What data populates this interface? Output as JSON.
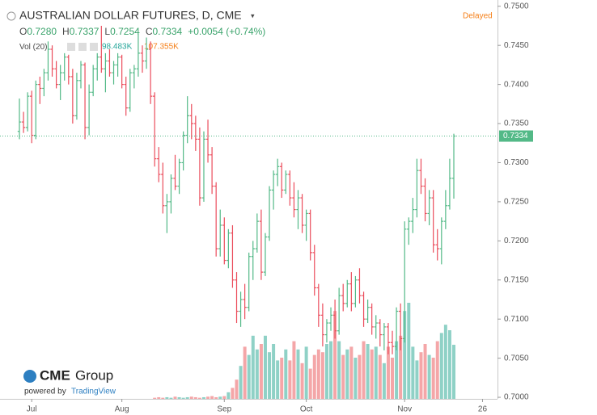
{
  "chart_data": {
    "type": "ohlc",
    "legend": {
      "title": "AUSTRALIAN DOLLAR FUTURES, D, CME",
      "status": "Delayed",
      "ohlc": [
        {
          "label": "O",
          "value": "0.7280"
        },
        {
          "label": "H",
          "value": "0.7337"
        },
        {
          "label": "L",
          "value": "0.7254"
        },
        {
          "label": "C",
          "value": "0.7334"
        }
      ],
      "change": "+0.0054 (+0.74%)",
      "volume_label": "Vol (20)",
      "volume_value": "98.483K",
      "volume_ma": "107.355K"
    },
    "logo_brand": "CME",
    "logo_name": "Group",
    "powered_by": "powered by",
    "powered_name": "TradingView",
    "categories": [
      null,
      null,
      null,
      "Jul",
      null,
      null,
      null,
      null,
      null,
      null,
      null,
      null,
      null,
      null,
      null,
      null,
      null,
      null,
      null,
      null,
      null,
      null,
      null,
      null,
      null,
      "Aug",
      null,
      null,
      null,
      null,
      null,
      null,
      null,
      null,
      null,
      null,
      null,
      null,
      null,
      null,
      null,
      null,
      null,
      null,
      null,
      null,
      null,
      null,
      null,
      null,
      "Sep",
      null,
      null,
      null,
      null,
      null,
      null,
      null,
      null,
      null,
      null,
      null,
      null,
      null,
      null,
      null,
      null,
      null,
      null,
      null,
      "Oct",
      null,
      null,
      null,
      null,
      null,
      null,
      null,
      null,
      null,
      null,
      null,
      null,
      null,
      null,
      null,
      null,
      null,
      null,
      null,
      null,
      null,
      null,
      null,
      "Nov",
      null,
      null,
      null,
      null,
      null,
      null,
      null,
      null,
      null,
      null,
      null,
      null,
      null,
      null,
      null,
      null,
      null,
      null,
      "26",
      null
    ],
    "open": [
      0.734,
      0.7352,
      0.7345,
      0.7385,
      0.7335,
      0.74,
      0.7395,
      0.7415,
      0.7445,
      0.742,
      0.74,
      0.7415,
      0.7435,
      0.741,
      0.736,
      0.7405,
      0.7425,
      0.7345,
      0.739,
      0.742,
      0.7435,
      0.742,
      0.743,
      0.7415,
      0.7425,
      0.7435,
      0.74,
      0.737,
      0.7415,
      0.742,
      0.744,
      0.743,
      0.7445,
      0.7385,
      0.7305,
      0.7285,
      0.7245,
      0.725,
      0.728,
      0.727,
      0.73,
      0.7335,
      0.736,
      0.735,
      0.733,
      0.7255,
      0.733,
      0.731,
      0.727,
      0.719,
      0.722,
      0.7175,
      0.721,
      0.715,
      0.711,
      0.7125,
      0.7115,
      0.718,
      0.719,
      0.7225,
      0.716,
      0.7205,
      0.7265,
      0.7285,
      0.7295,
      0.7265,
      0.7285,
      0.7255,
      0.724,
      0.7255,
      0.722,
      0.7235,
      0.7185,
      0.714,
      0.7105,
      0.708,
      0.7095,
      0.7105,
      0.7085,
      0.713,
      0.712,
      0.7145,
      0.712,
      0.715,
      0.713,
      0.71,
      0.7115,
      0.709,
      0.7095,
      0.708,
      0.709,
      0.707,
      0.7065,
      0.711,
      0.7075,
      0.7215,
      0.7225,
      0.724,
      0.729,
      0.727,
      0.7235,
      0.7255,
      0.7195,
      0.719,
      0.7225,
      0.7245,
      0.728,
      null,
      null,
      null,
      null,
      null,
      null,
      null,
      null
    ],
    "high": [
      0.7382,
      0.7365,
      0.739,
      0.7392,
      0.7405,
      0.741,
      0.742,
      0.7455,
      0.745,
      0.743,
      0.7425,
      0.744,
      0.7438,
      0.742,
      0.7415,
      0.743,
      0.7428,
      0.74,
      0.7425,
      0.744,
      0.7475,
      0.744,
      0.7445,
      0.743,
      0.744,
      0.7438,
      0.741,
      0.742,
      0.7425,
      0.7465,
      0.745,
      0.746,
      0.7455,
      0.739,
      0.732,
      0.73,
      0.726,
      0.7285,
      0.731,
      0.7305,
      0.734,
      0.7385,
      0.7375,
      0.736,
      0.7345,
      0.734,
      0.7355,
      0.732,
      0.7275,
      0.724,
      0.723,
      0.7215,
      0.722,
      0.716,
      0.7135,
      0.7145,
      0.7185,
      0.72,
      0.7235,
      0.724,
      0.721,
      0.727,
      0.729,
      0.7305,
      0.73,
      0.729,
      0.729,
      0.7275,
      0.7265,
      0.726,
      0.724,
      0.724,
      0.7195,
      0.7145,
      0.712,
      0.71,
      0.7115,
      0.7125,
      0.714,
      0.7145,
      0.715,
      0.716,
      0.7155,
      0.7165,
      0.7135,
      0.7125,
      0.712,
      0.7105,
      0.71,
      0.7095,
      0.7095,
      0.7085,
      0.7115,
      0.712,
      0.7225,
      0.723,
      0.7255,
      0.7305,
      0.7305,
      0.728,
      0.7265,
      0.7265,
      0.7215,
      0.723,
      0.7265,
      0.7305,
      0.7337,
      null,
      null,
      null,
      null,
      null,
      null,
      null,
      null
    ],
    "low": [
      0.733,
      0.7338,
      0.734,
      0.7325,
      0.733,
      0.7375,
      0.7385,
      0.7405,
      0.741,
      0.7395,
      0.738,
      0.7405,
      0.74,
      0.735,
      0.7355,
      0.7395,
      0.733,
      0.7335,
      0.7385,
      0.7405,
      0.7415,
      0.739,
      0.741,
      0.74,
      0.741,
      0.7395,
      0.736,
      0.7365,
      0.7395,
      0.741,
      0.7415,
      0.742,
      0.7375,
      0.7295,
      0.7275,
      0.7235,
      0.721,
      0.7235,
      0.7265,
      0.726,
      0.729,
      0.7325,
      0.733,
      0.7315,
      0.7245,
      0.725,
      0.73,
      0.726,
      0.718,
      0.718,
      0.717,
      0.7165,
      0.714,
      0.7095,
      0.709,
      0.71,
      0.711,
      0.715,
      0.7185,
      0.715,
      0.7155,
      0.72,
      0.724,
      0.727,
      0.7255,
      0.726,
      0.7245,
      0.723,
      0.7215,
      0.721,
      0.72,
      0.7175,
      0.713,
      0.709,
      0.7065,
      0.707,
      0.7085,
      0.7075,
      0.708,
      0.711,
      0.7115,
      0.711,
      0.7115,
      0.712,
      0.709,
      0.7095,
      0.708,
      0.7075,
      0.7065,
      0.706,
      0.7055,
      0.7055,
      0.706,
      0.706,
      0.707,
      0.7195,
      0.721,
      0.723,
      0.726,
      0.7225,
      0.722,
      0.7185,
      0.7175,
      0.717,
      0.7215,
      0.724,
      0.7254,
      null,
      null,
      null,
      null,
      null,
      null,
      null,
      null
    ],
    "close": [
      0.7352,
      0.7345,
      0.7385,
      0.7335,
      0.74,
      0.7395,
      0.7415,
      0.7445,
      0.742,
      0.74,
      0.7415,
      0.7435,
      0.741,
      0.736,
      0.7405,
      0.7425,
      0.7345,
      0.739,
      0.742,
      0.7435,
      0.742,
      0.743,
      0.7415,
      0.7425,
      0.7435,
      0.74,
      0.737,
      0.7415,
      0.742,
      0.744,
      0.743,
      0.7445,
      0.7385,
      0.7305,
      0.7285,
      0.7245,
      0.725,
      0.728,
      0.727,
      0.73,
      0.7335,
      0.736,
      0.735,
      0.733,
      0.7255,
      0.733,
      0.731,
      0.727,
      0.719,
      0.722,
      0.7175,
      0.721,
      0.715,
      0.711,
      0.7125,
      0.7115,
      0.718,
      0.719,
      0.7225,
      0.716,
      0.7205,
      0.7265,
      0.7285,
      0.7295,
      0.7265,
      0.7285,
      0.7255,
      0.724,
      0.7255,
      0.722,
      0.7235,
      0.7185,
      0.714,
      0.7105,
      0.708,
      0.7095,
      0.7105,
      0.7085,
      0.713,
      0.712,
      0.7145,
      0.712,
      0.715,
      0.713,
      0.71,
      0.7115,
      0.709,
      0.7095,
      0.708,
      0.709,
      0.707,
      0.7065,
      0.711,
      0.7075,
      0.7215,
      0.7225,
      0.724,
      0.729,
      0.727,
      0.7235,
      0.7255,
      0.7195,
      0.719,
      0.7225,
      0.7245,
      0.728,
      0.7334,
      null,
      null,
      null,
      null,
      null,
      null,
      null,
      null
    ],
    "volume": [
      0,
      0,
      0,
      0,
      0,
      0,
      0,
      0,
      0,
      0,
      0,
      0,
      0,
      0,
      0,
      0,
      0,
      0,
      0,
      0,
      0,
      0,
      0,
      0,
      0,
      0,
      0,
      0,
      0,
      0,
      0,
      0,
      0,
      2000,
      3000,
      2000,
      3000,
      2000,
      4000,
      3000,
      2000,
      3000,
      4000,
      3000,
      2000,
      3000,
      4000,
      5000,
      3000,
      4000,
      5000,
      12000,
      20000,
      35000,
      60000,
      95000,
      80000,
      115000,
      90000,
      100000,
      115000,
      85000,
      100000,
      70000,
      75000,
      90000,
      70000,
      105000,
      90000,
      65000,
      95000,
      55000,
      80000,
      90000,
      85000,
      100000,
      105000,
      160000,
      105000,
      80000,
      90000,
      95000,
      75000,
      80000,
      105000,
      100000,
      90000,
      95000,
      80000,
      65000,
      95000,
      75000,
      105000,
      115000,
      160000,
      175000,
      95000,
      70000,
      85000,
      100000,
      80000,
      75000,
      105000,
      120000,
      135000,
      125000,
      98483,
      null,
      null,
      null,
      null,
      null,
      null,
      null,
      null
    ],
    "ylim": [
      0.6998,
      0.7508
    ],
    "yticks": [
      {
        "value": 0.7,
        "label": "0.7000"
      },
      {
        "value": 0.705,
        "label": "0.7050"
      },
      {
        "value": 0.71,
        "label": "0.7100"
      },
      {
        "value": 0.715,
        "label": "0.7150"
      },
      {
        "value": 0.72,
        "label": "0.7200"
      },
      {
        "value": 0.725,
        "label": "0.7250"
      },
      {
        "value": 0.73,
        "label": "0.7300"
      },
      {
        "value": 0.735,
        "label": "0.7350"
      },
      {
        "value": 0.74,
        "label": "0.7400"
      },
      {
        "value": 0.745,
        "label": "0.7450"
      },
      {
        "value": 0.75,
        "label": "0.7500"
      }
    ],
    "last_price": {
      "value": 0.7334,
      "label": "0.7334"
    },
    "volume_ylim": [
      0,
      700000
    ],
    "grid": false,
    "up_color": "#53b987",
    "down_color": "#eb4d5c",
    "volume_up_color": "#8fd1c6",
    "volume_down_color": "#f4a6a8"
  }
}
